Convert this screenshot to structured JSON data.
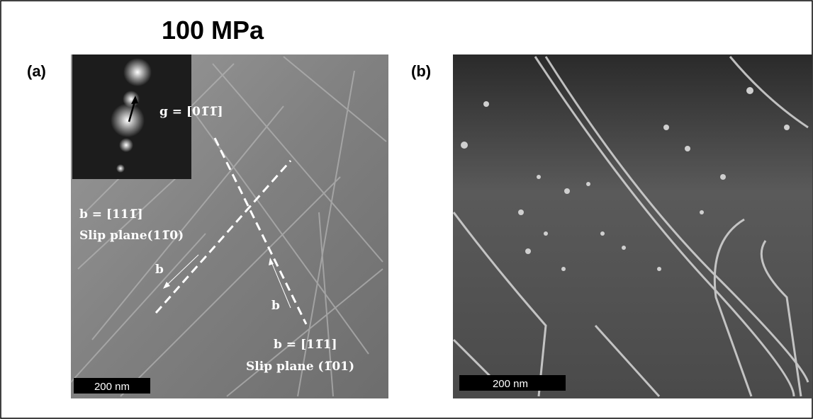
{
  "figure": {
    "title": "100 MPa",
    "panel_a": {
      "label": "(a)",
      "g_vector": "g = [01̅1̅]",
      "burgers_1": "b = [111̅]",
      "slip_plane_1": "Slip plane(11̅0)",
      "arrow_label_1": "b",
      "arrow_label_2": "b",
      "burgers_2": "b = [11̅1]",
      "slip_plane_2": "Slip plane (1̅01)",
      "scale_bar": "200 nm"
    },
    "panel_b": {
      "label": "(b)",
      "scale_bar": "200 nm"
    }
  }
}
